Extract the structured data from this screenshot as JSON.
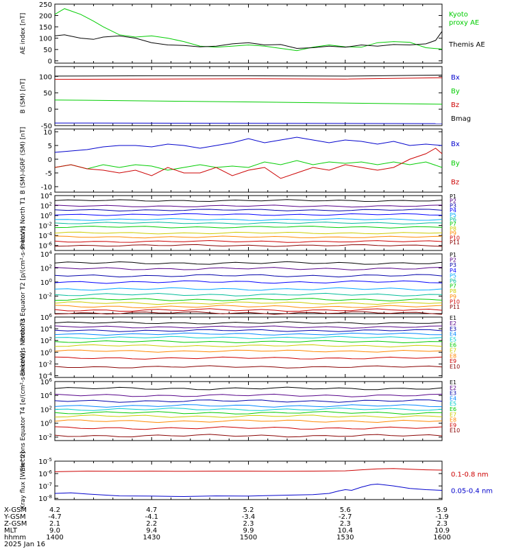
{
  "chart_data": [
    {
      "type": "line",
      "ylabel": "AE index [nT]",
      "ylim": [
        -10,
        250
      ],
      "yticks": [
        "250",
        "200",
        "150",
        "100",
        "50",
        "0"
      ],
      "ytick_values": [
        250,
        200,
        150,
        100,
        50,
        0
      ],
      "series": [
        {
          "name": "Kyoto proxy AE",
          "color": "#00cc00",
          "legend": [
            "Kyoto",
            "proxy AE"
          ],
          "x": [
            0,
            3,
            8,
            12,
            15,
            20,
            25,
            30,
            35,
            40,
            45,
            50,
            55,
            60,
            65,
            70,
            75,
            80,
            85,
            90,
            95,
            100,
            105,
            110,
            115,
            120
          ],
          "y": [
            205,
            230,
            205,
            175,
            150,
            115,
            105,
            110,
            100,
            85,
            65,
            60,
            65,
            70,
            65,
            55,
            45,
            60,
            70,
            62,
            60,
            80,
            85,
            82,
            58,
            52
          ]
        },
        {
          "name": "Themis AE",
          "color": "#000000",
          "legend": [
            "Themis AE"
          ],
          "x": [
            0,
            3,
            8,
            12,
            15,
            20,
            25,
            30,
            35,
            40,
            45,
            50,
            55,
            60,
            65,
            70,
            75,
            80,
            85,
            90,
            95,
            100,
            105,
            110,
            115,
            118,
            120
          ],
          "y": [
            110,
            115,
            100,
            95,
            105,
            110,
            100,
            80,
            70,
            68,
            62,
            65,
            75,
            80,
            70,
            72,
            55,
            58,
            65,
            60,
            70,
            65,
            72,
            70,
            75,
            90,
            130
          ]
        }
      ]
    },
    {
      "type": "line",
      "ylabel": "B (SM) [nT]",
      "ylim": [
        -50,
        130
      ],
      "yticks": [
        "100",
        "50",
        "0",
        "-50"
      ],
      "ytick_values": [
        100,
        50,
        0,
        -50
      ],
      "series": [
        {
          "name": "Bx",
          "color": "#0000cc",
          "x": [
            0,
            120
          ],
          "y": [
            -42,
            -44
          ]
        },
        {
          "name": "By",
          "color": "#00cc00",
          "x": [
            0,
            40,
            80,
            120
          ],
          "y": [
            28,
            24,
            20,
            15
          ]
        },
        {
          "name": "Bz",
          "color": "#cc0000",
          "x": [
            0,
            30,
            60,
            90,
            120
          ],
          "y": [
            91,
            92,
            93,
            92,
            96
          ]
        },
        {
          "name": "Bmag",
          "color": "#000000",
          "x": [
            0,
            30,
            60,
            90,
            120
          ],
          "y": [
            101,
            102,
            102,
            101,
            104
          ]
        }
      ]
    },
    {
      "type": "line",
      "ylabel": "B (SM)-IGRF (SM) [nT]",
      "ylim": [
        -12,
        11
      ],
      "yticks": [
        "10",
        "5",
        "0",
        "-5",
        "-10"
      ],
      "ytick_values": [
        10,
        5,
        0,
        -5,
        -10
      ],
      "series": [
        {
          "name": "Bx",
          "color": "#0000cc",
          "x": [
            0,
            5,
            10,
            15,
            20,
            25,
            30,
            35,
            40,
            45,
            50,
            55,
            60,
            65,
            70,
            75,
            80,
            85,
            90,
            95,
            100,
            105,
            110,
            115,
            120
          ],
          "y": [
            2.5,
            3,
            3.5,
            4.5,
            5,
            5,
            4.5,
            5.5,
            5,
            4,
            5,
            6,
            7.5,
            6,
            7,
            8,
            7,
            6,
            7,
            6.5,
            5.5,
            6.5,
            5,
            5.5,
            5
          ]
        },
        {
          "name": "By",
          "color": "#00cc00",
          "x": [
            0,
            5,
            10,
            15,
            20,
            25,
            30,
            35,
            40,
            45,
            50,
            55,
            60,
            65,
            70,
            75,
            80,
            85,
            90,
            95,
            100,
            105,
            110,
            115,
            120
          ],
          "y": [
            -3,
            -2,
            -3.5,
            -2,
            -3,
            -2,
            -2.5,
            -4,
            -3,
            -2,
            -3,
            -2.5,
            -3,
            -1,
            -2,
            -0.5,
            -2,
            -1,
            -1.5,
            -1,
            -2,
            -1,
            -2,
            -1,
            -3
          ]
        },
        {
          "name": "Bz",
          "color": "#cc0000",
          "x": [
            0,
            5,
            10,
            15,
            20,
            25,
            30,
            35,
            40,
            45,
            50,
            55,
            60,
            65,
            70,
            75,
            80,
            85,
            90,
            95,
            100,
            105,
            110,
            115,
            118,
            120
          ],
          "y": [
            -3,
            -2,
            -3.5,
            -4,
            -5,
            -4,
            -6,
            -3,
            -5,
            -5,
            -3,
            -6,
            -4,
            -3,
            -7,
            -5,
            -3,
            -4,
            -2,
            -3,
            -4,
            -3,
            0,
            2,
            4,
            2
          ]
        }
      ]
    },
    {
      "type": "line",
      "ylabel": "Protons North T1",
      "ylog": true,
      "ylim_exp": [
        -7,
        4
      ],
      "yticks": [
        "10^4",
        "10^2",
        "10^0",
        "10^-2",
        "10^-4",
        "10^-6"
      ],
      "ytick_values": [
        4,
        2,
        0,
        -2,
        -4,
        -6
      ],
      "series": [
        {
          "name": "P1",
          "color": "#000000",
          "y": 3
        },
        {
          "name": "P2",
          "color": "#550088",
          "y": 1.9
        },
        {
          "name": "P3",
          "color": "#0000aa",
          "y": 1.1
        },
        {
          "name": "P4",
          "color": "#0000ff",
          "y": 0.2
        },
        {
          "name": "P5",
          "color": "#00aaff",
          "y": -0.8
        },
        {
          "name": "P6",
          "color": "#00bb99",
          "y": -1.5
        },
        {
          "name": "P7",
          "color": "#00cc00",
          "y": -2.3
        },
        {
          "name": "P8",
          "color": "#cccc00",
          "y": -3.5
        },
        {
          "name": "P9",
          "color": "#ff8800",
          "y": -4.3
        },
        {
          "name": "P10",
          "color": "#cc0000",
          "y": -5.2
        },
        {
          "name": "P11",
          "color": "#880000",
          "y": -6
        }
      ]
    },
    {
      "type": "line",
      "ylabel": "Protons Equator T2 [p/(cm²-s-sr-keV)]",
      "ylog": true,
      "ylim_exp": [
        -4.5,
        4
      ],
      "yticks": [
        "10^4",
        "10^2",
        "10^0",
        "10^-2"
      ],
      "ytick_values": [
        4,
        2,
        0,
        -2
      ],
      "series": [
        {
          "name": "P1",
          "color": "#000000",
          "y": 2.7
        },
        {
          "name": "P2",
          "color": "#550088",
          "y": 1.9
        },
        {
          "name": "P3",
          "color": "#0000aa",
          "y": 0.9
        },
        {
          "name": "P4",
          "color": "#0000ff",
          "y": 0
        },
        {
          "name": "P5",
          "color": "#00aaff",
          "y": -1
        },
        {
          "name": "P6",
          "color": "#00bb99",
          "y": -1.8
        },
        {
          "name": "P7",
          "color": "#00cc00",
          "y": -2.5
        },
        {
          "name": "P8",
          "color": "#cccc00",
          "y": -3
        },
        {
          "name": "P9",
          "color": "#ff8800",
          "y": -3.5
        },
        {
          "name": "P10",
          "color": "#cc0000",
          "y": -4
        },
        {
          "name": "P11",
          "color": "#880000",
          "y": -4.4
        }
      ]
    },
    {
      "type": "line",
      "ylabel": "Electrons North T3",
      "ylog": true,
      "ylim_exp": [
        -4.3,
        6
      ],
      "yticks": [
        "10^6",
        "10^4",
        "10^2",
        "10^0",
        "10^-2",
        "10^-4"
      ],
      "ytick_values": [
        6,
        4,
        2,
        0,
        -2,
        -4
      ],
      "series": [
        {
          "name": "E1",
          "color": "#000000",
          "y": 5
        },
        {
          "name": "E2",
          "color": "#550088",
          "y": 4.3
        },
        {
          "name": "E3",
          "color": "#0000aa",
          "y": 3.7
        },
        {
          "name": "E4",
          "color": "#0088ff",
          "y": 3.1
        },
        {
          "name": "E5",
          "color": "#00cccc",
          "y": 2.5
        },
        {
          "name": "E6",
          "color": "#00cc00",
          "y": 1.8
        },
        {
          "name": "E7",
          "color": "#cccc00",
          "y": 1.1
        },
        {
          "name": "E8",
          "color": "#ff8800",
          "y": 0.2
        },
        {
          "name": "E9",
          "color": "#cc0000",
          "y": -1
        },
        {
          "name": "E10",
          "color": "#880000",
          "y": -2.5
        }
      ]
    },
    {
      "type": "line",
      "ylabel": "Electrons Equator T4 [e/(cm²-s-sr-keV)]",
      "ylog": true,
      "ylim_exp": [
        -2.5,
        6
      ],
      "yticks": [
        "10^6",
        "10^4",
        "10^2",
        "10^0",
        "10^-2"
      ],
      "ytick_values": [
        6,
        4,
        2,
        0,
        -2
      ],
      "series": [
        {
          "name": "E1",
          "color": "#000000",
          "y": 5
        },
        {
          "name": "E2",
          "color": "#550088",
          "y": 4
        },
        {
          "name": "E3",
          "color": "#0000aa",
          "y": 3.2
        },
        {
          "name": "E4",
          "color": "#0088ff",
          "y": 2.5
        },
        {
          "name": "E5",
          "color": "#00cccc",
          "y": 2
        },
        {
          "name": "E6",
          "color": "#00cc00",
          "y": 1.5
        },
        {
          "name": "E7",
          "color": "#cccc00",
          "y": 1
        },
        {
          "name": "E8",
          "color": "#ff8800",
          "y": 0.3
        },
        {
          "name": "E9",
          "color": "#cc0000",
          "y": -0.7
        },
        {
          "name": "E10",
          "color": "#880000",
          "y": -1.8
        }
      ]
    },
    {
      "type": "line",
      "ylabel": "Xray flux [W/m^2]",
      "ylog": true,
      "ylim_exp": [
        -8.1,
        -5
      ],
      "yticks": [
        "10^-5",
        "10^-6",
        "10^-7",
        "10^-8"
      ],
      "ytick_values": [
        -5,
        -6,
        -7,
        -8
      ],
      "series": [
        {
          "name": "0.1-0.8 nm",
          "color": "#cc0000",
          "x": [
            0,
            10,
            20,
            30,
            40,
            50,
            60,
            70,
            80,
            90,
            95,
            100,
            105,
            110,
            115,
            120
          ],
          "y": [
            -5.85,
            -5.8,
            -5.82,
            -5.8,
            -5.82,
            -5.8,
            -5.8,
            -5.82,
            -5.8,
            -5.78,
            -5.7,
            -5.62,
            -5.6,
            -5.65,
            -5.7,
            -5.72
          ]
        },
        {
          "name": "0.05-0.4 nm",
          "color": "#0000cc",
          "x": [
            0,
            5,
            10,
            20,
            30,
            40,
            50,
            60,
            70,
            80,
            85,
            88,
            90,
            92,
            95,
            98,
            100,
            105,
            110,
            115,
            120
          ],
          "y": [
            -7.6,
            -7.55,
            -7.65,
            -7.8,
            -7.82,
            -7.85,
            -7.8,
            -7.82,
            -7.75,
            -7.7,
            -7.6,
            -7.4,
            -7.3,
            -7.35,
            -7.1,
            -6.9,
            -6.85,
            -7.0,
            -7.2,
            -7.3,
            -7.35
          ]
        }
      ]
    }
  ],
  "axis": {
    "row_labels": [
      "X-GSM",
      "Y-GSM",
      "Z-GSM",
      "MLT",
      "hhmm",
      "2025 Jan 16"
    ],
    "columns": [
      {
        "xgsm": "4.2",
        "ygsm": "-4.7",
        "zgsm": "2.1",
        "mlt": "9.0",
        "hhmm": "1400"
      },
      {
        "xgsm": "4.7",
        "ygsm": "-4.1",
        "zgsm": "2.2",
        "mlt": "9.4",
        "hhmm": "1430"
      },
      {
        "xgsm": "5.2",
        "ygsm": "-3.4",
        "zgsm": "2.3",
        "mlt": "9.9",
        "hhmm": "1500"
      },
      {
        "xgsm": "5.6",
        "ygsm": "-2.7",
        "zgsm": "2.3",
        "mlt": "10.4",
        "hhmm": "1530"
      },
      {
        "xgsm": "5.9",
        "ygsm": "-1.9",
        "zgsm": "2.3",
        "mlt": "10.9",
        "hhmm": "1600"
      }
    ]
  }
}
